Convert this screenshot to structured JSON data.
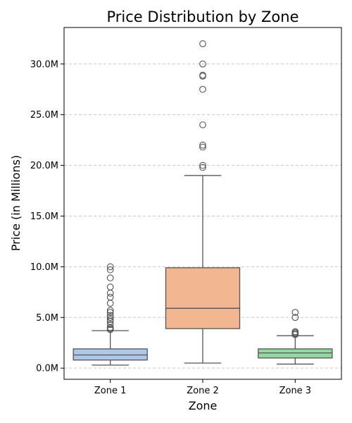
{
  "chart_data": {
    "type": "box",
    "title": "Price Distribution by Zone",
    "xlabel": "Zone",
    "ylabel": "Price (in Millions)",
    "ylim": [
      -1.1,
      33.6
    ],
    "yticks": [
      0,
      5,
      10,
      15,
      20,
      25,
      30
    ],
    "ytick_labels": [
      "0.0M",
      "5.0M",
      "10.0M",
      "15.0M",
      "20.0M",
      "25.0M",
      "30.0M"
    ],
    "grid": "y-dashed",
    "series": [
      {
        "category": "Zone 1",
        "color": "#aec7e8",
        "whisker_low": 0.3,
        "q1": 0.8,
        "median": 1.3,
        "q3": 1.9,
        "whisker_high": 3.7,
        "outliers": [
          3.8,
          3.9,
          4.0,
          4.3,
          4.6,
          4.8,
          5.0,
          5.2,
          5.5,
          5.7,
          6.4,
          7.0,
          7.4,
          8.0,
          8.9,
          9.7,
          10.0
        ]
      },
      {
        "category": "Zone 2",
        "color": "#f2b690",
        "whisker_low": 0.5,
        "q1": 3.9,
        "median": 5.9,
        "q3": 9.9,
        "whisker_high": 19.0,
        "outliers": [
          19.8,
          20.0,
          21.8,
          22.0,
          24.0,
          27.5,
          28.8,
          28.9,
          30.0,
          32.0
        ]
      },
      {
        "category": "Zone 3",
        "color": "#95d6a4",
        "whisker_low": 0.4,
        "q1": 1.0,
        "median": 1.5,
        "q3": 1.9,
        "whisker_high": 3.2,
        "outliers": [
          3.3,
          3.4,
          3.5,
          3.6,
          5.0,
          5.5
        ]
      }
    ]
  }
}
